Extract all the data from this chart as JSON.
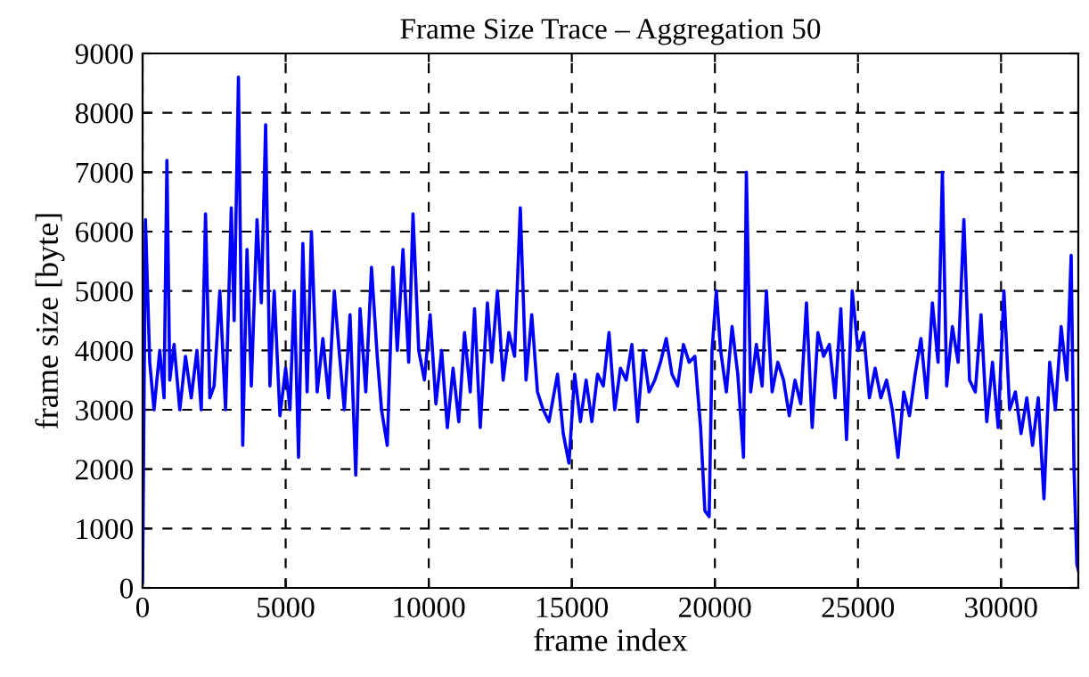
{
  "chart_data": {
    "type": "line",
    "title": "Frame Size Trace – Aggregation 50",
    "xlabel": "frame index",
    "ylabel": "frame size [byte]",
    "xlim": [
      0,
      32700
    ],
    "xticks": [
      0,
      5000,
      10000,
      15000,
      20000,
      25000,
      30000
    ],
    "ylim": [
      0,
      9000
    ],
    "yticks": [
      0,
      1000,
      2000,
      3000,
      4000,
      5000,
      6000,
      7000,
      8000,
      9000
    ],
    "grid": true,
    "legend": false,
    "marker": "none",
    "line_style": "solid",
    "series": [
      {
        "color": "#0000ff",
        "x": [
          0,
          100,
          250,
          400,
          600,
          750,
          850,
          950,
          1100,
          1300,
          1500,
          1700,
          1900,
          2050,
          2200,
          2350,
          2500,
          2700,
          2900,
          3100,
          3200,
          3350,
          3500,
          3650,
          3800,
          4000,
          4150,
          4300,
          4450,
          4600,
          4800,
          5000,
          5150,
          5300,
          5450,
          5600,
          5750,
          5900,
          6100,
          6300,
          6500,
          6700,
          6850,
          7050,
          7250,
          7450,
          7600,
          7800,
          8000,
          8200,
          8350,
          8550,
          8750,
          8900,
          9100,
          9300,
          9450,
          9650,
          9850,
          10050,
          10250,
          10450,
          10650,
          10850,
          11050,
          11250,
          11450,
          11600,
          11800,
          12050,
          12200,
          12400,
          12600,
          12800,
          13000,
          13200,
          13400,
          13600,
          13800,
          14000,
          14200,
          14500,
          14700,
          14900,
          15100,
          15300,
          15500,
          15700,
          15900,
          16100,
          16300,
          16500,
          16700,
          16900,
          17100,
          17300,
          17500,
          17700,
          17900,
          18100,
          18300,
          18500,
          18700,
          18900,
          19100,
          19300,
          19500,
          19650,
          19800,
          19900,
          20050,
          20200,
          20400,
          20600,
          20800,
          21000,
          21100,
          21250,
          21450,
          21650,
          21800,
          22000,
          22200,
          22400,
          22600,
          22800,
          23000,
          23200,
          23400,
          23600,
          23800,
          24000,
          24200,
          24400,
          24600,
          24800,
          25000,
          25200,
          25400,
          25600,
          25800,
          26000,
          26200,
          26400,
          26600,
          26800,
          27000,
          27200,
          27400,
          27600,
          27800,
          27950,
          28100,
          28300,
          28500,
          28700,
          28900,
          29100,
          29300,
          29500,
          29700,
          29900,
          30100,
          30300,
          30500,
          30700,
          30900,
          31100,
          31300,
          31500,
          31700,
          31900,
          32100,
          32300,
          32450,
          32550,
          32650,
          32700
        ],
        "values": [
          100,
          6200,
          3800,
          3000,
          4000,
          3200,
          7200,
          3500,
          4100,
          3000,
          3900,
          3200,
          4000,
          3000,
          6300,
          3200,
          3400,
          5000,
          3000,
          6400,
          4500,
          8600,
          2400,
          5700,
          3400,
          6200,
          4800,
          7800,
          3400,
          5000,
          2900,
          3700,
          3000,
          5000,
          2200,
          5800,
          3300,
          6000,
          3300,
          4200,
          3200,
          5000,
          4100,
          3000,
          4600,
          1900,
          4700,
          3300,
          5400,
          3900,
          3000,
          2400,
          5400,
          4000,
          5700,
          3800,
          6300,
          4000,
          3500,
          4600,
          3100,
          4000,
          2700,
          3700,
          2800,
          4300,
          3300,
          4700,
          2700,
          4800,
          3800,
          5000,
          3500,
          4300,
          3900,
          6400,
          3500,
          4600,
          3300,
          3000,
          2800,
          3600,
          2600,
          2100,
          3600,
          2800,
          3500,
          2800,
          3600,
          3400,
          4300,
          3000,
          3700,
          3500,
          4100,
          2800,
          4000,
          3300,
          3500,
          3800,
          4200,
          3600,
          3400,
          4100,
          3800,
          3900,
          2700,
          1300,
          1200,
          4000,
          5000,
          4000,
          3300,
          4400,
          3600,
          2200,
          7000,
          3300,
          4100,
          3400,
          5000,
          3300,
          3800,
          3500,
          2900,
          3500,
          3100,
          4800,
          2700,
          4300,
          3900,
          4100,
          3200,
          4700,
          2500,
          5000,
          4000,
          4300,
          3200,
          3700,
          3200,
          3500,
          3000,
          2200,
          3300,
          2900,
          3600,
          4200,
          3200,
          4800,
          3800,
          7000,
          3400,
          4400,
          3800,
          6200,
          3500,
          3300,
          4600,
          2800,
          3800,
          2700,
          5000,
          3000,
          3300,
          2600,
          3200,
          2400,
          3200,
          1500,
          3800,
          3000,
          4400,
          3500,
          5600,
          2000,
          400,
          300
        ]
      }
    ]
  }
}
